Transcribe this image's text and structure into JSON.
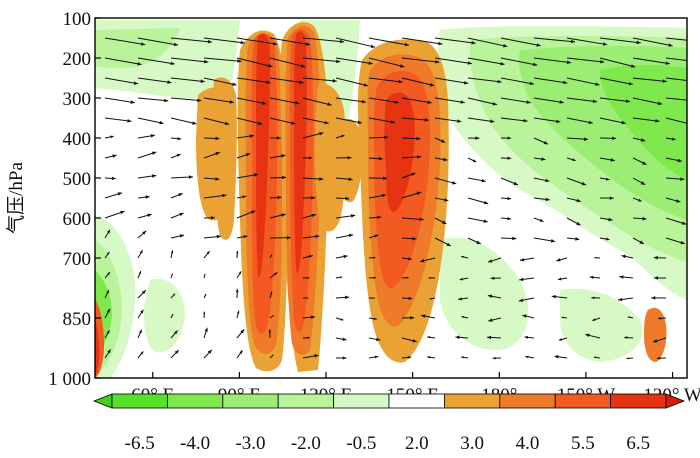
{
  "chart_data": {
    "type": "heatmap",
    "title": "",
    "ylabel": "气压/hPa",
    "xlabel": "",
    "x_ticks": [
      "60° E",
      "90° E",
      "120° E",
      "150° E",
      "180°",
      "150° W",
      "120° W"
    ],
    "y_ticks": [
      "100",
      "200",
      "300",
      "400",
      "500",
      "600",
      "700",
      "850",
      "1 000"
    ],
    "y_values": [
      100,
      200,
      300,
      400,
      500,
      600,
      700,
      850,
      1000
    ],
    "x_values": [
      60,
      90,
      120,
      150,
      180,
      210,
      240
    ],
    "xlim": [
      40,
      245
    ],
    "ylim": [
      1000,
      100
    ],
    "legend": "bottom",
    "colorbar": {
      "labels": [
        "-6.5",
        "-4.0",
        "-3.0",
        "-2.0",
        "-0.5",
        "2.0",
        "3.0",
        "4.0",
        "5.5",
        "6.5"
      ],
      "levels": [
        -6.5,
        -4.0,
        -3.0,
        -2.0,
        -0.5,
        2.0,
        3.0,
        4.0,
        5.5,
        6.5
      ],
      "colors": [
        "#55e02a",
        "#7ee84d",
        "#9bee73",
        "#b9f39a",
        "#d6f9c6",
        "#ffffff",
        "#e9a233",
        "#ef7a2a",
        "#f25a22",
        "#e63312"
      ]
    },
    "colors": {
      "positive_weak": "#e9a233",
      "positive_mid": "#ef7a2a",
      "positive_strong": "#f25a22",
      "positive_max": "#e63312",
      "negative_weak": "#d6f9c6",
      "negative_mid": "#b9f39a",
      "negative_strong": "#7ee84d"
    }
  }
}
